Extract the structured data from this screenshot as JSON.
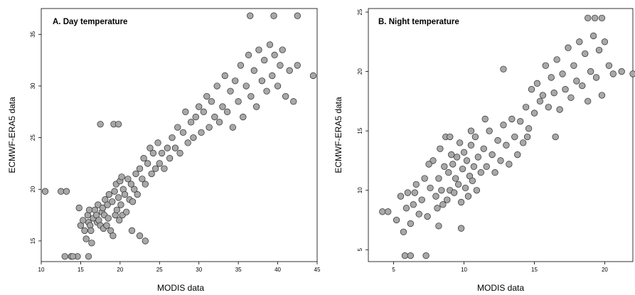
{
  "chart_data": [
    {
      "type": "scatter",
      "title": "A. Day temperature",
      "xlabel": "MODIS data",
      "ylabel": "ECMWF-ERA5 data",
      "xlim": [
        10,
        45
      ],
      "ylim": [
        13,
        37.5
      ],
      "xticks": [
        "10",
        "15",
        "20",
        "25",
        "30",
        "35",
        "40",
        "45"
      ],
      "yticks": [
        "15",
        "20",
        "25",
        "30",
        "35"
      ],
      "x": [
        10.5,
        12.5,
        13.2,
        13.8,
        14.6,
        14.8,
        15.0,
        15.3,
        15.5,
        15.7,
        15.9,
        16.0,
        16.1,
        16.2,
        16.3,
        16.4,
        16.6,
        16.8,
        17.0,
        17.1,
        17.2,
        17.3,
        17.5,
        17.7,
        17.8,
        17.9,
        18.0,
        18.1,
        18.3,
        18.4,
        18.5,
        18.6,
        18.8,
        19.0,
        19.1,
        19.3,
        19.4,
        19.5,
        19.6,
        19.8,
        19.9,
        20.0,
        20.1,
        20.2,
        20.3,
        20.4,
        20.6,
        20.8,
        21.0,
        21.2,
        21.4,
        21.6,
        21.8,
        22.0,
        22.2,
        22.5,
        22.8,
        23.0,
        23.2,
        23.5,
        23.8,
        24.0,
        24.2,
        24.5,
        24.8,
        25.0,
        25.3,
        25.6,
        26.0,
        26.3,
        26.6,
        27.0,
        27.3,
        27.6,
        28.0,
        28.3,
        28.6,
        29.0,
        29.3,
        29.6,
        30.0,
        30.3,
        30.6,
        31.0,
        31.3,
        31.6,
        32.0,
        32.3,
        32.6,
        33.0,
        33.3,
        33.6,
        34.0,
        34.3,
        34.6,
        35.0,
        35.3,
        35.6,
        36.0,
        36.3,
        36.6,
        37.0,
        37.3,
        37.6,
        38.0,
        38.3,
        38.6,
        39.0,
        39.3,
        39.6,
        40.0,
        40.3,
        40.6,
        41.0,
        41.5,
        42.0,
        42.5,
        44.5,
        36.5,
        39.5,
        42.5,
        17.5,
        19.2,
        19.8,
        13.0,
        14.0,
        16.0,
        21.5,
        22.5,
        23.2
      ],
      "y": [
        19.8,
        19.8,
        19.8,
        13.5,
        13.5,
        18.2,
        16.5,
        17.0,
        16.0,
        15.2,
        17.5,
        16.8,
        18.0,
        16.5,
        16.0,
        14.8,
        17.2,
        18.0,
        17.5,
        16.8,
        18.5,
        17.0,
        16.5,
        17.8,
        18.2,
        16.2,
        17.5,
        19.0,
        16.5,
        18.5,
        17.2,
        19.5,
        16.0,
        18.8,
        15.5,
        19.8,
        17.5,
        20.5,
        18.0,
        19.2,
        17.0,
        20.8,
        18.5,
        21.2,
        17.5,
        20.0,
        19.5,
        17.8,
        21.0,
        19.0,
        20.5,
        18.8,
        20.0,
        21.5,
        19.5,
        22.0,
        21.0,
        23.0,
        20.5,
        22.5,
        24.0,
        21.5,
        23.5,
        22.0,
        24.5,
        22.5,
        23.5,
        22.0,
        24.0,
        23.0,
        25.0,
        24.0,
        26.0,
        23.5,
        25.5,
        27.5,
        24.5,
        26.5,
        25.0,
        27.0,
        28.0,
        25.5,
        27.5,
        29.0,
        26.0,
        28.5,
        27.0,
        30.0,
        26.5,
        28.0,
        31.0,
        27.5,
        29.5,
        26.0,
        30.5,
        28.5,
        32.0,
        27.0,
        30.0,
        33.0,
        29.0,
        31.5,
        28.0,
        33.5,
        30.5,
        32.5,
        29.5,
        34.0,
        31.0,
        33.0,
        30.0,
        32.0,
        33.5,
        29.0,
        31.5,
        28.5,
        32.0,
        31.0,
        36.8,
        36.8,
        36.8,
        26.3,
        26.3,
        26.3,
        13.5,
        13.5,
        13.5,
        16.0,
        15.5,
        15.0
      ]
    },
    {
      "type": "scatter",
      "title": "B. Night temperature",
      "xlabel": "MODIS data",
      "ylabel": "ECMWF-ERA5 data",
      "xlim": [
        3.2,
        22
      ],
      "ylim": [
        4,
        25.3
      ],
      "xticks": [
        "5",
        "10",
        "15",
        "20"
      ],
      "yticks": [
        "5",
        "10",
        "15",
        "20",
        "25"
      ],
      "x": [
        4.2,
        4.6,
        5.2,
        5.5,
        5.7,
        5.9,
        6.0,
        6.2,
        6.4,
        6.6,
        6.8,
        7.0,
        7.2,
        7.4,
        7.6,
        7.8,
        8.0,
        8.1,
        8.2,
        8.3,
        8.4,
        8.5,
        8.6,
        8.7,
        8.8,
        8.9,
        9.0,
        9.1,
        9.2,
        9.3,
        9.4,
        9.5,
        9.6,
        9.7,
        9.8,
        9.9,
        10.0,
        10.1,
        10.2,
        10.3,
        10.4,
        10.5,
        10.6,
        10.7,
        10.8,
        10.9,
        11.0,
        11.2,
        11.4,
        11.6,
        11.8,
        12.0,
        12.2,
        12.4,
        12.6,
        12.8,
        13.0,
        13.2,
        13.4,
        13.6,
        13.8,
        14.0,
        14.2,
        14.4,
        14.6,
        14.8,
        15.0,
        15.2,
        15.4,
        15.6,
        15.8,
        16.0,
        16.2,
        16.4,
        16.6,
        16.8,
        17.0,
        17.2,
        17.4,
        17.6,
        17.8,
        18.0,
        18.2,
        18.4,
        18.6,
        18.8,
        19.0,
        19.2,
        19.4,
        19.6,
        19.8,
        20.0,
        20.3,
        20.6,
        21.2,
        22.0,
        18.8,
        19.3,
        19.8,
        5.8,
        6.2,
        7.3,
        9.8,
        12.8,
        6.5,
        7.5,
        8.2,
        9.0,
        10.5,
        11.5,
        14.5,
        16.5
      ],
      "y": [
        8.2,
        8.2,
        7.5,
        9.5,
        6.5,
        8.5,
        9.8,
        7.2,
        8.8,
        10.5,
        8.0,
        9.2,
        11.0,
        7.8,
        10.2,
        12.5,
        9.5,
        8.5,
        11.0,
        13.5,
        10.0,
        8.8,
        12.0,
        14.5,
        9.2,
        11.5,
        10.0,
        13.0,
        12.2,
        9.8,
        11.0,
        12.8,
        10.5,
        14.0,
        9.0,
        11.8,
        13.2,
        10.2,
        12.5,
        9.5,
        11.2,
        13.8,
        10.8,
        12.0,
        14.5,
        10.0,
        12.8,
        11.5,
        13.5,
        12.0,
        15.0,
        13.0,
        11.5,
        14.2,
        12.5,
        15.5,
        13.8,
        12.2,
        16.0,
        14.5,
        13.0,
        15.8,
        14.0,
        17.0,
        15.2,
        18.5,
        16.5,
        19.0,
        17.5,
        18.0,
        20.5,
        17.0,
        19.5,
        18.2,
        21.0,
        16.8,
        19.8,
        18.5,
        22.0,
        17.8,
        20.5,
        19.2,
        22.5,
        18.8,
        21.5,
        17.5,
        20.0,
        23.0,
        19.5,
        21.8,
        18.0,
        22.5,
        20.5,
        19.8,
        20.0,
        19.8,
        24.5,
        24.5,
        24.5,
        4.5,
        4.5,
        4.5,
        6.8,
        20.2,
        9.8,
        12.2,
        7.0,
        14.5,
        15.0,
        16.0,
        14.5,
        14.5
      ]
    }
  ]
}
